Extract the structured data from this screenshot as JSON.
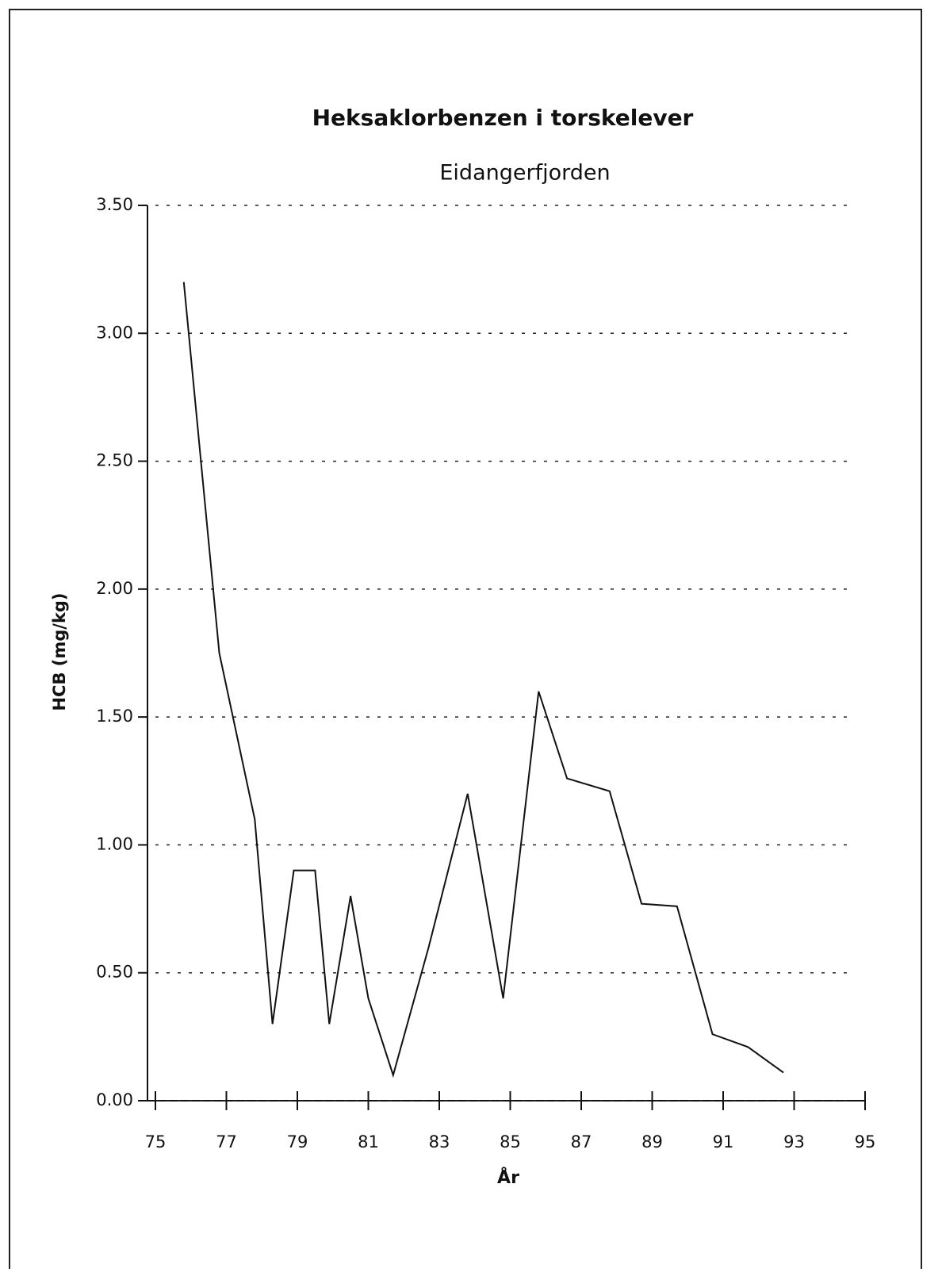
{
  "chart_data": {
    "type": "line",
    "title": "Heksaklorbenzen i torskelever",
    "subtitle": "Eidangerfjorden",
    "x_label": "År",
    "y_label": "HCB (mg/kg)",
    "x": [
      75.8,
      76.8,
      77.8,
      78.3,
      78.9,
      79.5,
      79.9,
      80.5,
      81.0,
      81.7,
      82.7,
      83.8,
      84.8,
      85.8,
      86.6,
      87.8,
      88.7,
      89.7,
      90.7,
      91.7,
      92.7
    ],
    "series": [
      {
        "name": "HCB",
        "color": "#111111",
        "values": [
          3.2,
          1.75,
          1.1,
          0.3,
          0.9,
          0.9,
          0.3,
          0.8,
          0.4,
          0.1,
          0.6,
          1.2,
          0.4,
          1.6,
          1.26,
          1.21,
          0.77,
          0.76,
          0.26,
          0.21,
          0.11
        ]
      }
    ],
    "xlim": [
      75,
      95
    ],
    "xticks": [
      75,
      77,
      79,
      81,
      83,
      85,
      87,
      89,
      91,
      93,
      95
    ],
    "ylim": [
      0,
      3.5
    ],
    "yticks": [
      {
        "value": 0,
        "label": "0.00"
      },
      {
        "value": 0.5,
        "label": "0.50"
      },
      {
        "value": 1,
        "label": "1.00"
      },
      {
        "value": 1.5,
        "label": "1.50"
      },
      {
        "value": 2,
        "label": "2.00"
      },
      {
        "value": 2.5,
        "label": "2.50"
      },
      {
        "value": 3,
        "label": "3.00"
      },
      {
        "value": 3.5,
        "label": "3.50"
      }
    ],
    "grid": true
  }
}
